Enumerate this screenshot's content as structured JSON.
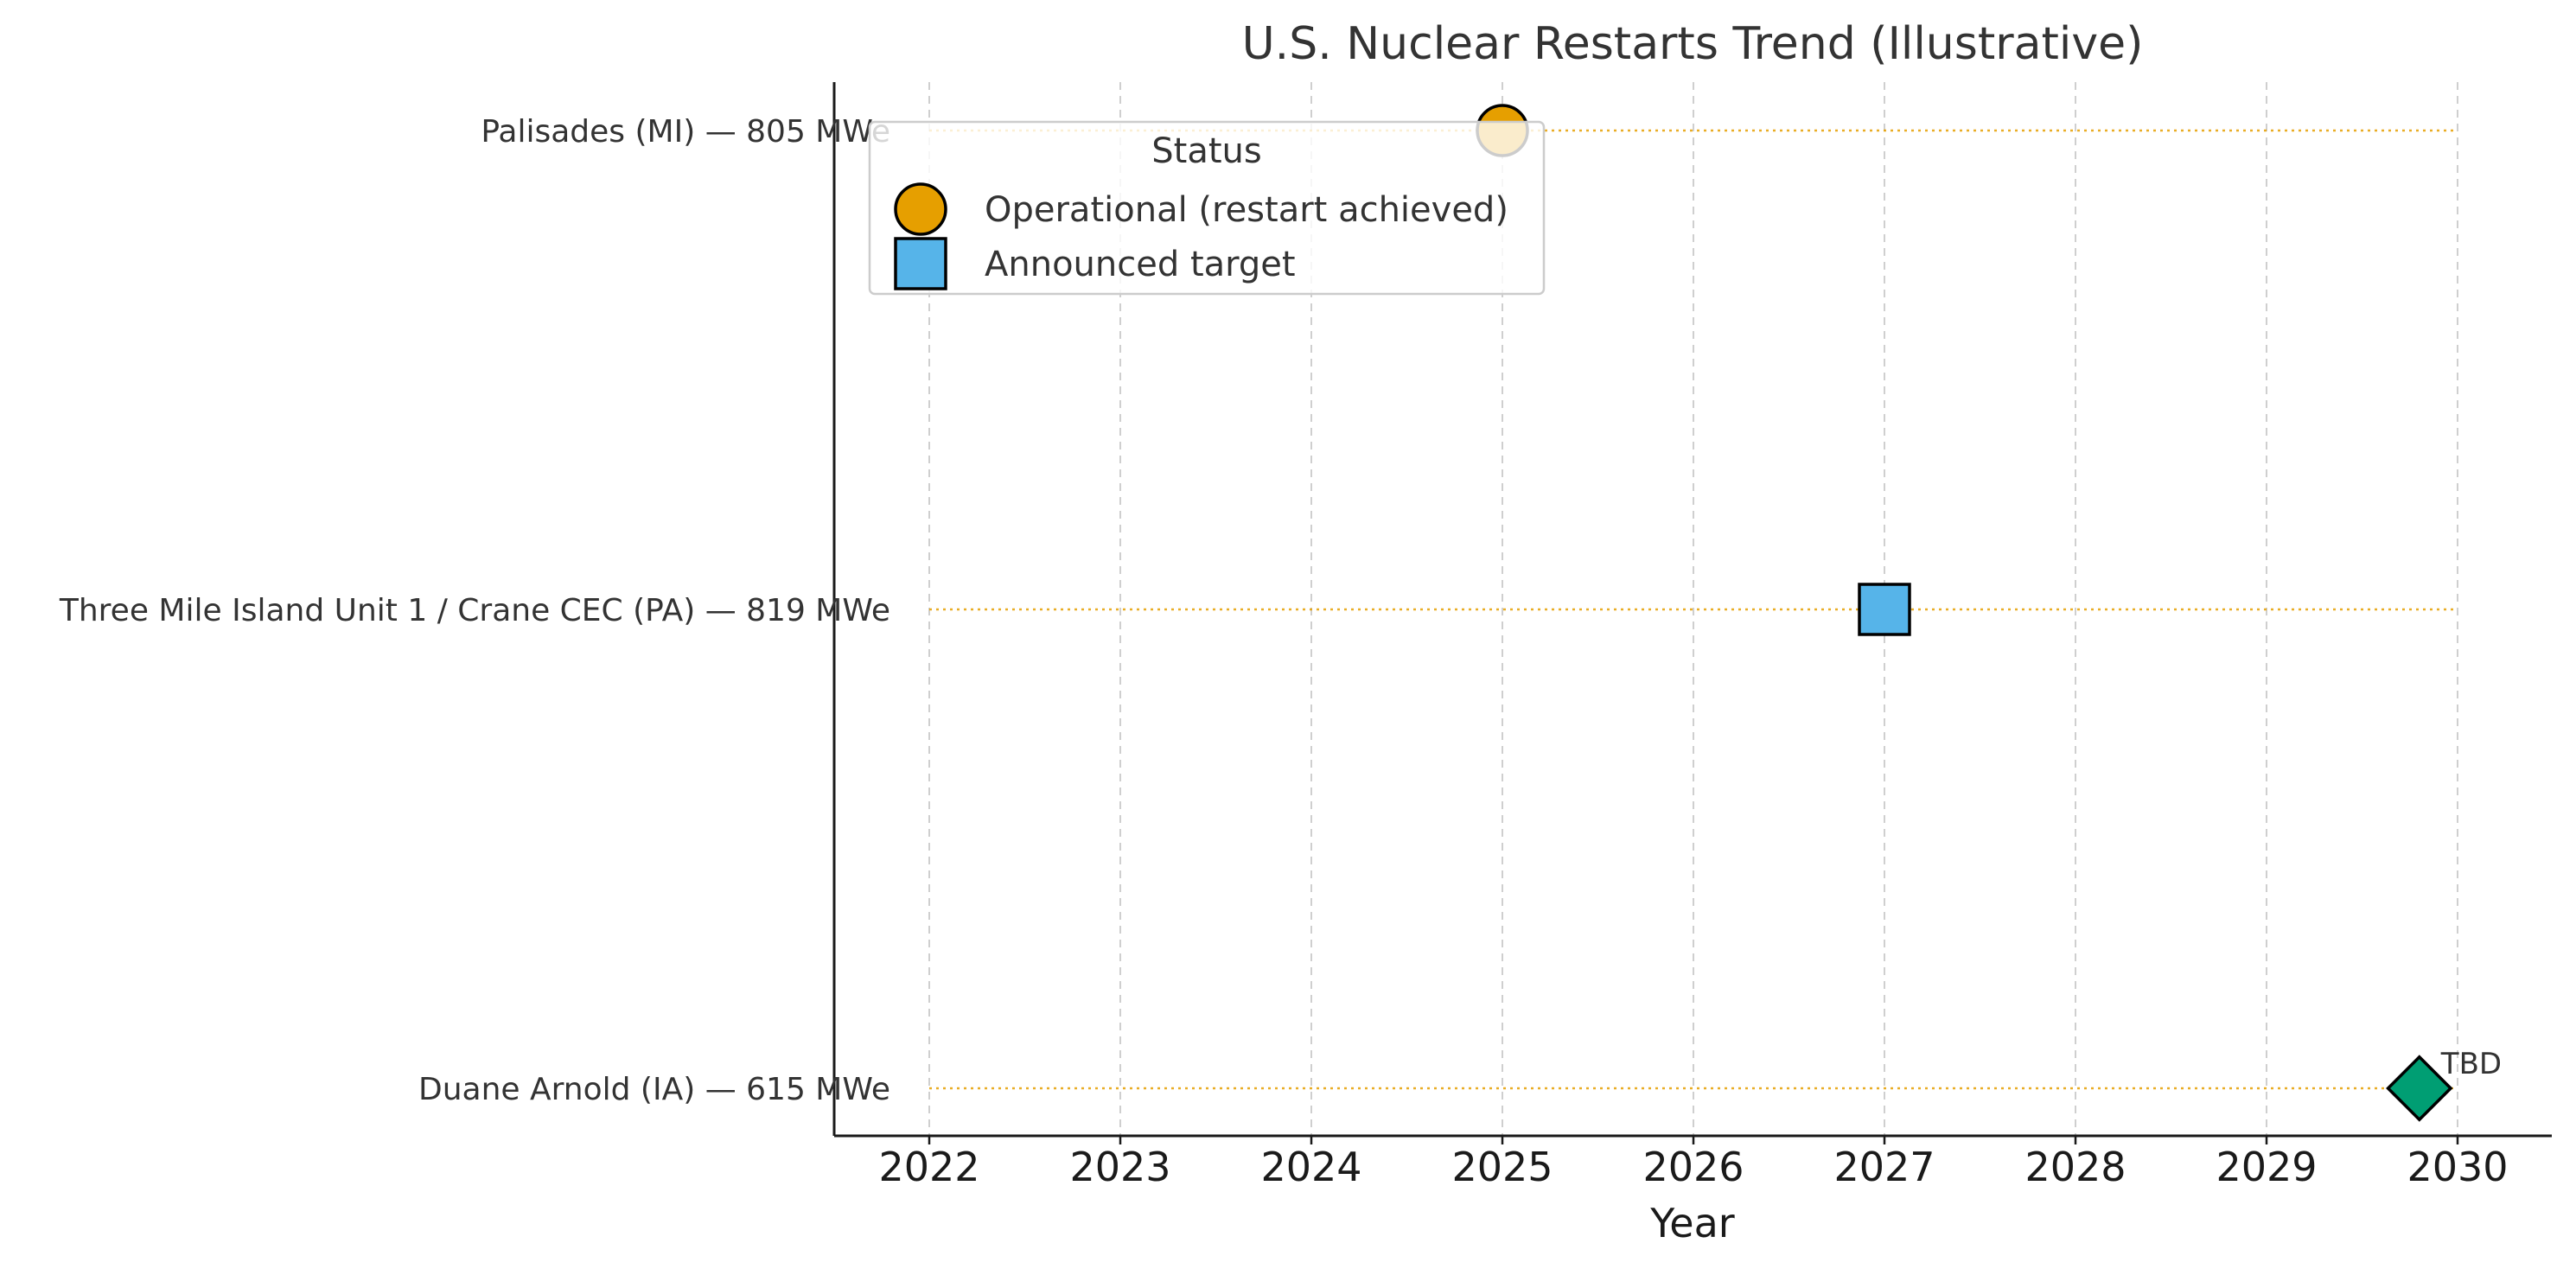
{
  "chart_data": {
    "type": "scatter",
    "title": "U.S. Nuclear Restarts Trend (Illustrative)",
    "xlabel": "Year",
    "ylabel": "",
    "xlim": [
      2021.5,
      2030.5
    ],
    "x_ticks": [
      "2022",
      "2023",
      "2024",
      "2025",
      "2026",
      "2027",
      "2028",
      "2029",
      "2030"
    ],
    "categories": [
      "Palisades (MI) — 805 MWe",
      "Three Mile Island Unit 1 / Crane CEC (PA) — 819 MWe",
      "Duane Arnold (IA) — 615 MWe"
    ],
    "grid": "vertical dashed",
    "points": [
      {
        "category": "Palisades (MI) — 805 MWe",
        "x": 2025.0,
        "status": "Operational (restart achieved)",
        "marker": "circle",
        "color": "#E69F00"
      },
      {
        "category": "Three Mile Island Unit 1 / Crane CEC (PA) — 819 MWe",
        "x": 2027.0,
        "status": "Announced target",
        "marker": "square",
        "color": "#56B4E9"
      },
      {
        "category": "Duane Arnold (IA) — 615 MWe",
        "x": 2029.8,
        "status": "TBD",
        "marker": "diamond",
        "color": "#009E73",
        "annotation": "TBD"
      }
    ],
    "guide_lines": {
      "from": 2022,
      "to": 2030,
      "color": "#E69F00",
      "style": "dotted"
    },
    "legend": {
      "title": "Status",
      "placement": "top-left",
      "entries": [
        {
          "label": "Operational (restart achieved)",
          "marker": "circle",
          "color": "#E69F00"
        },
        {
          "label": "Announced target",
          "marker": "square",
          "color": "#56B4E9"
        }
      ]
    }
  }
}
